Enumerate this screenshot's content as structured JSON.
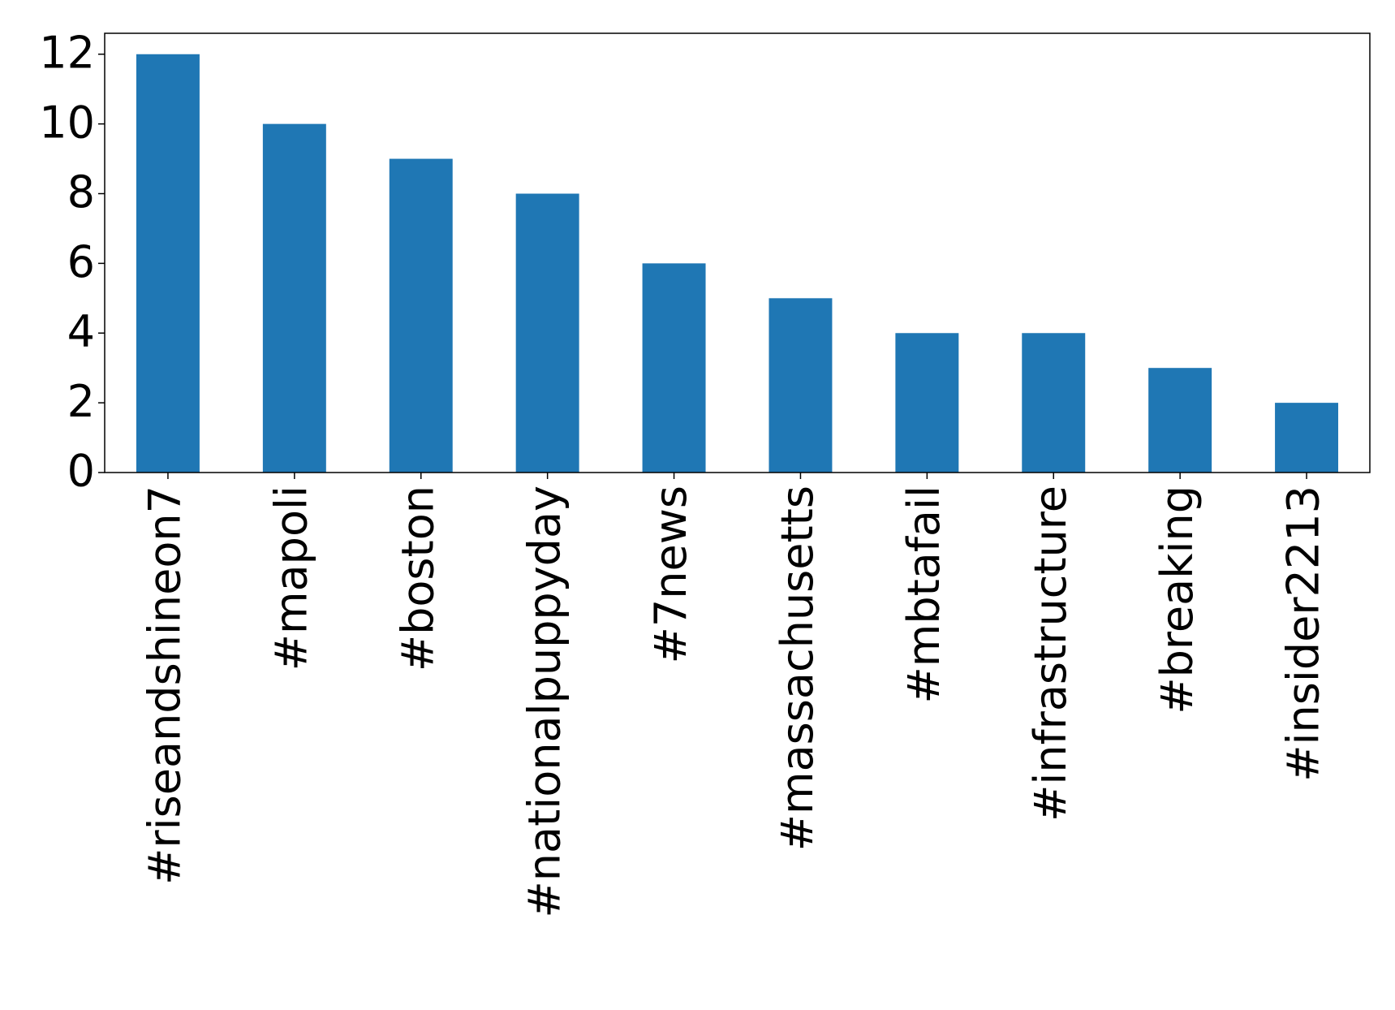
{
  "chart_data": {
    "type": "bar",
    "categories": [
      "#riseandshineon7",
      "#mapoli",
      "#boston",
      "#nationalpuppyday",
      "#7news",
      "#massachusetts",
      "#mbtafail",
      "#infrastructure",
      "#breaking",
      "#insider2213"
    ],
    "values": [
      12,
      10,
      9,
      8,
      6,
      5,
      4,
      4,
      3,
      2
    ],
    "color": "#1f77b4",
    "ylim": [
      0,
      12.6
    ],
    "yticks": [
      0,
      2,
      4,
      6,
      8,
      10,
      12
    ],
    "grid": false
  }
}
